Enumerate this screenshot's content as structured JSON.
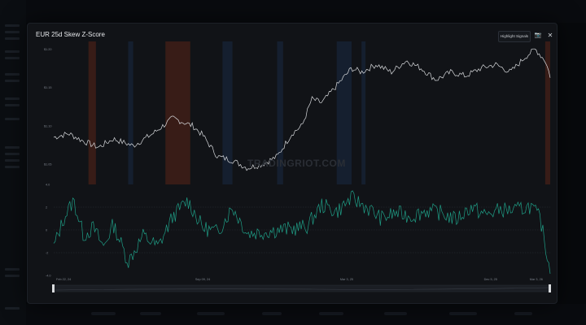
{
  "window": {
    "title": "EUR  25d Skew Z-Score",
    "highlight_label": "Highlight Signals",
    "camera_icon": "camera-icon",
    "close_icon": "close-icon"
  },
  "watermark": "TRADINGRIOT.COM",
  "colors": {
    "price_line": "#d9dbde",
    "zscore_line": "#1f9e86",
    "band_red": "#5a2418",
    "band_blue": "#1a2a44",
    "grid": "#2a2f36",
    "axis_text": "#7d838c"
  },
  "chart_data": [
    {
      "type": "line",
      "y_ticks": [
        "$1.20",
        "$1.15",
        "$1.10",
        "$1.05"
      ],
      "ylim": [
        1.03,
        1.21
      ],
      "x": [
        0,
        0.03,
        0.06,
        0.09,
        0.12,
        0.16,
        0.2,
        0.24,
        0.28,
        0.3,
        0.33,
        0.36,
        0.39,
        0.42,
        0.45,
        0.48,
        0.5,
        0.52,
        0.54,
        0.56,
        0.58,
        0.6,
        0.62,
        0.65,
        0.68,
        0.71,
        0.74,
        0.77,
        0.8,
        0.83,
        0.86,
        0.89,
        0.92,
        0.95,
        0.97,
        0.99,
        1.0
      ],
      "values": [
        1.085,
        1.09,
        1.08,
        1.072,
        1.083,
        1.074,
        1.09,
        1.11,
        1.1,
        1.088,
        1.06,
        1.055,
        1.045,
        1.05,
        1.06,
        1.09,
        1.1,
        1.135,
        1.13,
        1.145,
        1.16,
        1.175,
        1.17,
        1.18,
        1.17,
        1.185,
        1.175,
        1.16,
        1.17,
        1.165,
        1.175,
        1.18,
        1.17,
        1.19,
        1.2,
        1.185,
        1.165
      ]
    },
    {
      "type": "line",
      "y_ticks": [
        "4.0",
        "2",
        "0",
        "-2",
        "-4.0"
      ],
      "ylim": [
        -4.0,
        4.0
      ],
      "x_ticks": [
        "Feb 22, 24",
        "Sep 09, 24",
        "Mar 3, 25",
        "Dec 5, 25",
        "Mar 3, 26"
      ],
      "x": [
        0,
        0.02,
        0.04,
        0.06,
        0.08,
        0.1,
        0.12,
        0.15,
        0.18,
        0.21,
        0.24,
        0.27,
        0.3,
        0.33,
        0.36,
        0.39,
        0.42,
        0.45,
        0.48,
        0.51,
        0.54,
        0.57,
        0.6,
        0.63,
        0.66,
        0.69,
        0.72,
        0.75,
        0.78,
        0.81,
        0.84,
        0.87,
        0.9,
        0.93,
        0.96,
        0.98,
        1.0
      ],
      "values": [
        -1.5,
        1.0,
        2.6,
        -0.5,
        0.2,
        -1.5,
        0.5,
        -2.8,
        -0.5,
        -1.5,
        1.2,
        2.6,
        0.2,
        -0.2,
        2.0,
        -0.3,
        -0.2,
        0.0,
        0.1,
        0.3,
        2.2,
        1.6,
        2.8,
        2.0,
        1.0,
        1.5,
        1.2,
        1.7,
        1.5,
        0.9,
        2.0,
        1.3,
        1.8,
        1.7,
        2.1,
        1.0,
        -3.6
      ]
    }
  ]
}
